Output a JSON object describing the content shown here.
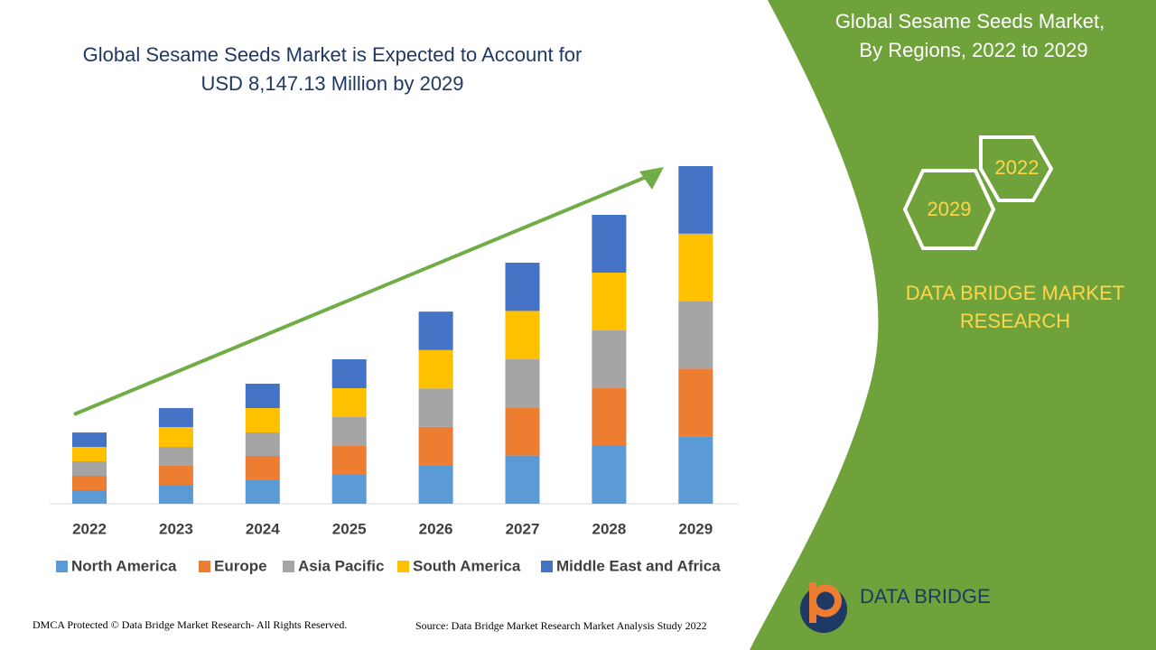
{
  "chart_data": {
    "type": "stacked-bar",
    "title": "Global Sesame Seeds Market is Expected to Account for USD 8,147.13 Million by 2029",
    "categories": [
      "2022",
      "2023",
      "2024",
      "2025",
      "2026",
      "2027",
      "2028",
      "2029"
    ],
    "series": [
      {
        "name": "North America",
        "color": "#5b9bd5",
        "values": [
          327,
          457,
          566,
          697,
          927,
          1163,
          1394,
          1629
        ]
      },
      {
        "name": "Europe",
        "color": "#ed7d31",
        "values": [
          348,
          457,
          588,
          697,
          927,
          1163,
          1394,
          1629
        ]
      },
      {
        "name": "Asia Pacific",
        "color": "#a5a5a5",
        "values": [
          348,
          457,
          566,
          697,
          927,
          1163,
          1394,
          1629
        ]
      },
      {
        "name": "South America",
        "color": "#ffc000",
        "values": [
          348,
          479,
          588,
          697,
          927,
          1163,
          1394,
          1629
        ]
      },
      {
        "name": "Middle East and Africa",
        "color": "#4472c4",
        "values": [
          348,
          457,
          588,
          697,
          927,
          1163,
          1394,
          1629
        ]
      }
    ],
    "legend": "bottom"
  },
  "panel": {
    "title_lines": [
      "Global Sesame Seeds Market,",
      "By Regions, 2022 to 2029"
    ],
    "hex_labels": [
      "2022",
      "2029"
    ],
    "brand_lines": [
      "DATA BRIDGE MARKET",
      "RESEARCH"
    ],
    "logo_text": "DATA BRIDGE"
  },
  "footer": {
    "left": "DMCA Protected © Data Bridge Market Research- All Rights Reserved.",
    "right": "Source: Data Bridge Market Research Market Analysis Study 2022"
  }
}
